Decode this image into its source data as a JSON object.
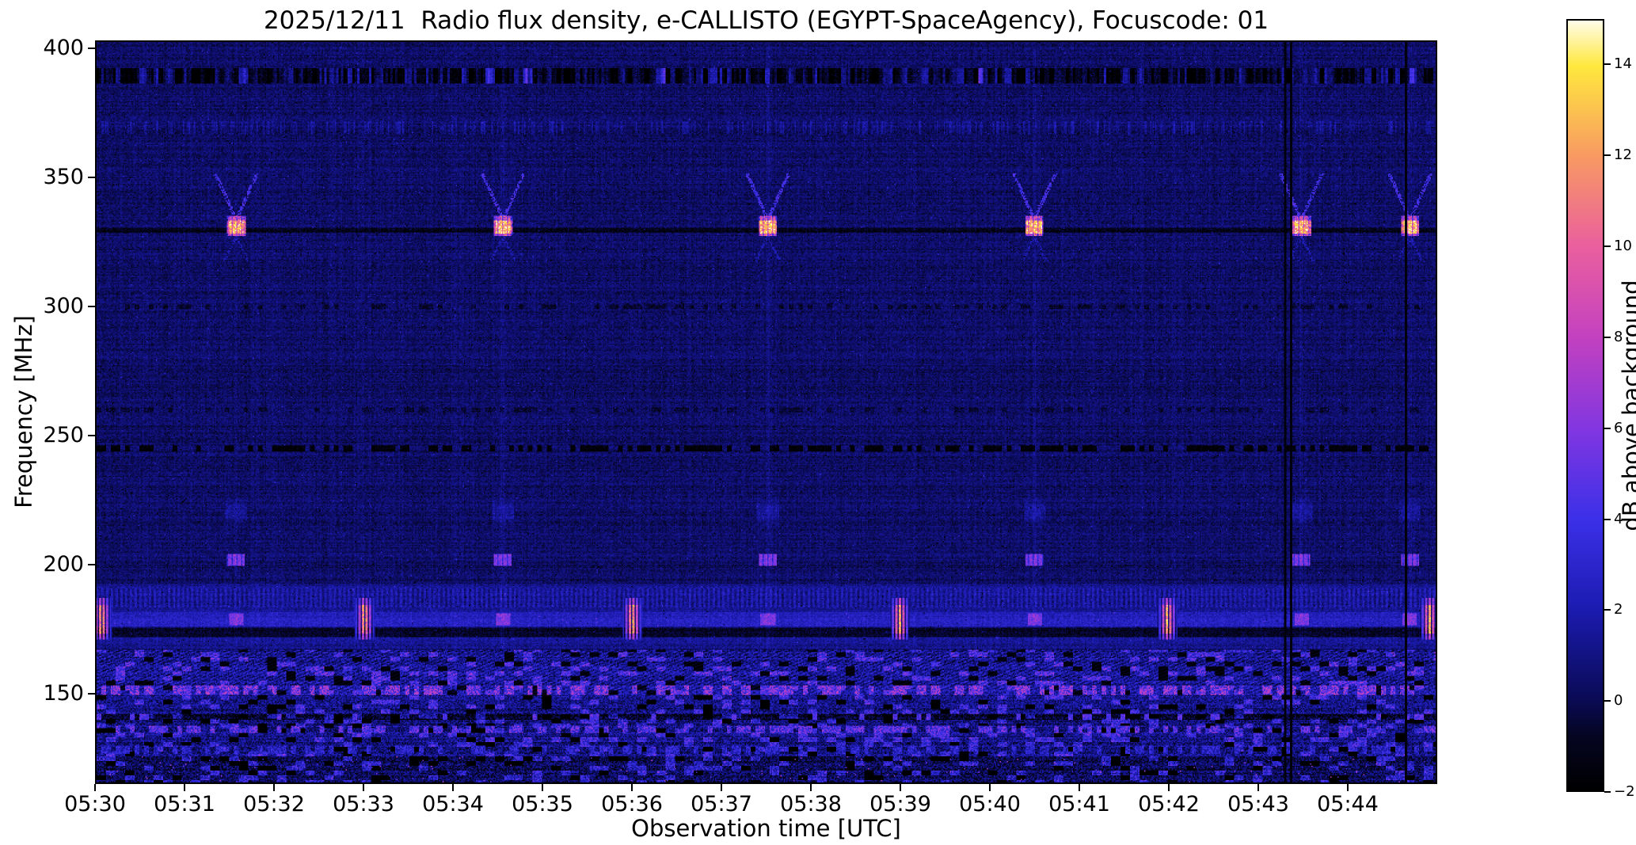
{
  "page": {
    "background_color": "#ffffff",
    "text_color": "#000000"
  },
  "chart_data": {
    "type": "heatmap",
    "title": "2025/12/11  Radio flux density, e-CALLISTO (EGYPT-SpaceAgency), Focuscode: 01",
    "date": "2025/12/11",
    "instrument": "e-CALLISTO (EGYPT-SpaceAgency)",
    "focuscode": "01",
    "xlabel": "Observation time [UTC]",
    "ylabel": "Frequency [MHz]",
    "colorbar_label": "dB above background",
    "x_tick_labels": [
      "05:30",
      "05:31",
      "05:32",
      "05:33",
      "05:34",
      "05:35",
      "05:36",
      "05:37",
      "05:38",
      "05:39",
      "05:40",
      "05:41",
      "05:42",
      "05:43",
      "05:44"
    ],
    "x_span_minutes": 15,
    "y_tick_values": [
      400,
      350,
      300,
      250,
      200,
      150
    ],
    "freq_range_mhz": [
      115,
      403
    ],
    "value_range_db": [
      -2,
      15
    ],
    "colorbar_tick_values": [
      -2,
      0,
      2,
      4,
      6,
      8,
      10,
      12,
      14
    ],
    "grid": false,
    "legend": "none",
    "colormap_stops": [
      {
        "pos": 0.0,
        "color": "#000000"
      },
      {
        "pos": 0.07,
        "color": "#050522"
      },
      {
        "pos": 0.118,
        "color": "#0a0a55"
      },
      {
        "pos": 0.235,
        "color": "#1b1bb0"
      },
      {
        "pos": 0.353,
        "color": "#3c30e8"
      },
      {
        "pos": 0.47,
        "color": "#8236e0"
      },
      {
        "pos": 0.588,
        "color": "#c341c0"
      },
      {
        "pos": 0.706,
        "color": "#ea5f9e"
      },
      {
        "pos": 0.824,
        "color": "#f89a62"
      },
      {
        "pos": 0.941,
        "color": "#ffe83e"
      },
      {
        "pos": 1.0,
        "color": "#fffce8"
      }
    ],
    "features": {
      "background_level_db": 0.4,
      "cal_signal_freq_mhz": 331,
      "cal_signal_times_min": [
        1.56,
        4.55,
        7.52,
        10.51,
        13.5,
        14.72
      ],
      "cal_secondary_freq_mhz": 201,
      "rfi_band_mhz": [
        167,
        192
      ],
      "rfi_burst_band_mhz": [
        171,
        186
      ],
      "rfi_burst_times_min": [
        0.05,
        3.0,
        6.0,
        9.0,
        12.0,
        14.94
      ],
      "noise_region_below_mhz": 166,
      "dark_vline_times_min": [
        13.32,
        13.38,
        14.67
      ],
      "dark_hline_freqs_mhz": [
        330,
        245,
        390
      ],
      "faint_hline_freqs_mhz": [
        370,
        300,
        260,
        203
      ],
      "bright_noise_line_freqs_mhz": [
        151,
        135,
        127
      ]
    }
  }
}
